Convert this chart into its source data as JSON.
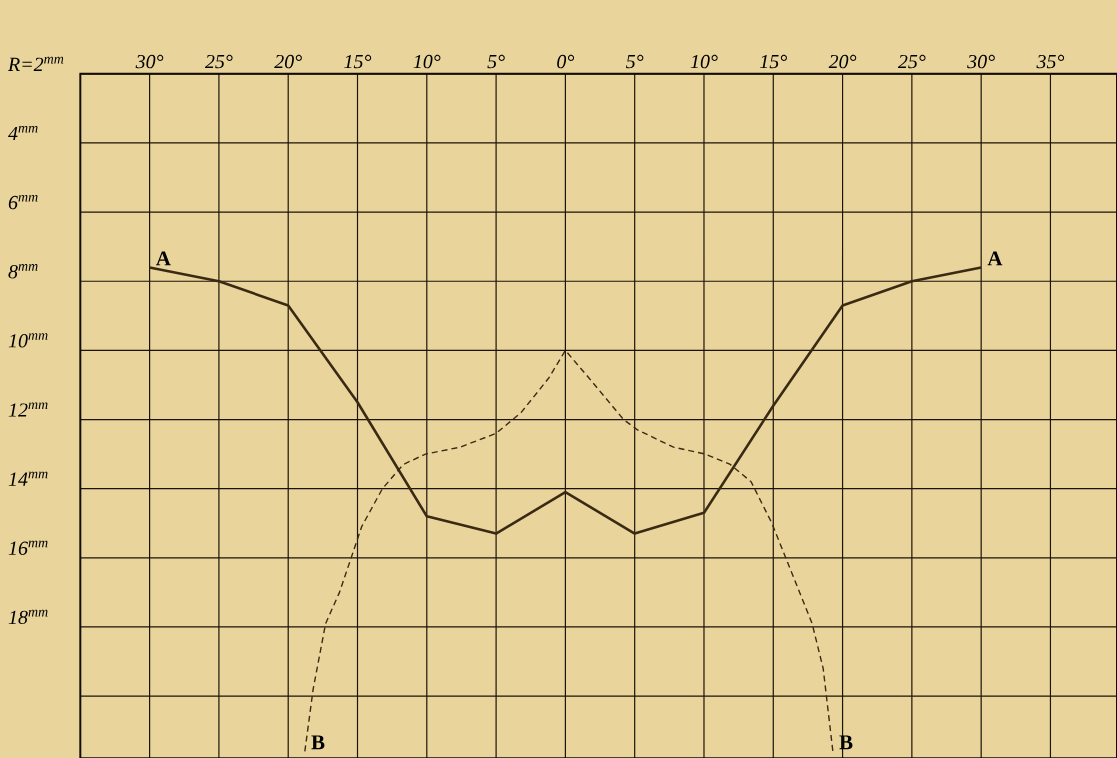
{
  "chart_data": {
    "type": "line",
    "xlim": [
      -35,
      39.8
    ],
    "ylim": [
      21.8,
      2
    ],
    "xticks": [
      {
        "value": -35,
        "label": null
      },
      {
        "value": -30,
        "label": "30°"
      },
      {
        "value": -25,
        "label": "25°"
      },
      {
        "value": -20,
        "label": "20°"
      },
      {
        "value": -15,
        "label": "15°"
      },
      {
        "value": -10,
        "label": "10°"
      },
      {
        "value": -5,
        "label": "5°"
      },
      {
        "value": 0,
        "label": "0°"
      },
      {
        "value": 5,
        "label": "5°"
      },
      {
        "value": 10,
        "label": "10°"
      },
      {
        "value": 15,
        "label": "15°"
      },
      {
        "value": 20,
        "label": "20°"
      },
      {
        "value": 25,
        "label": "25°"
      },
      {
        "value": 30,
        "label": "30°"
      },
      {
        "value": 35,
        "label": "35°"
      }
    ],
    "yticks": [
      {
        "value": 2,
        "label": "R=2$^{mm}$"
      },
      {
        "value": 4,
        "label": "4$^{mm}$"
      },
      {
        "value": 6,
        "label": "6$^{mm}$"
      },
      {
        "value": 8,
        "label": "8$^{mm}$"
      },
      {
        "value": 10,
        "label": "10$^{mm}$"
      },
      {
        "value": 12,
        "label": "12$^{mm}$"
      },
      {
        "value": 14,
        "label": "14$^{mm}$"
      },
      {
        "value": 16,
        "label": "16$^{mm}$"
      },
      {
        "value": 18,
        "label": "18$^{mm}$"
      },
      {
        "value": 20,
        "label": null
      }
    ],
    "grid": true,
    "marker": "none",
    "series": [
      {
        "color": "#3a2a14",
        "line_style": "solid",
        "x": [
          -30,
          -25,
          -20,
          -15,
          -10,
          -5,
          0,
          5,
          10,
          15,
          20,
          25,
          30
        ],
        "values": [
          7.6,
          8.0,
          8.7,
          11.5,
          14.8,
          15.3,
          14.1,
          15.3,
          14.7,
          11.6,
          8.7,
          8.0,
          7.6
        ]
      },
      {
        "color": "#3a2a14",
        "line_style": "dashed",
        "x": [
          -18.8,
          -18.2,
          -17.3,
          -16.3,
          -14.7,
          -13.2,
          -11.7,
          -10.1,
          -7.6,
          -5,
          -3.2,
          -1.2,
          0,
          1.7,
          4.2,
          5.2,
          7.8,
          10.1,
          11.9,
          13.4,
          14.9,
          16.1,
          17.8,
          18.6,
          19.3
        ],
        "values": [
          21.6,
          19.8,
          17.9,
          17.0,
          15.1,
          14.0,
          13.3,
          13.0,
          12.8,
          12.4,
          11.8,
          10.8,
          10.0,
          10.8,
          12.0,
          12.3,
          12.8,
          13.0,
          13.3,
          13.8,
          15.0,
          16.2,
          17.9,
          19.2,
          21.6
        ]
      }
    ],
    "annotations": [
      {
        "text": "A",
        "x": -30,
        "y": 7.6
      },
      {
        "text": "A",
        "x": 30,
        "y": 7.6
      },
      {
        "text": "B",
        "x": -18.8,
        "y": 21.6
      },
      {
        "text": "B",
        "x": 19.3,
        "y": 21.6
      }
    ]
  }
}
